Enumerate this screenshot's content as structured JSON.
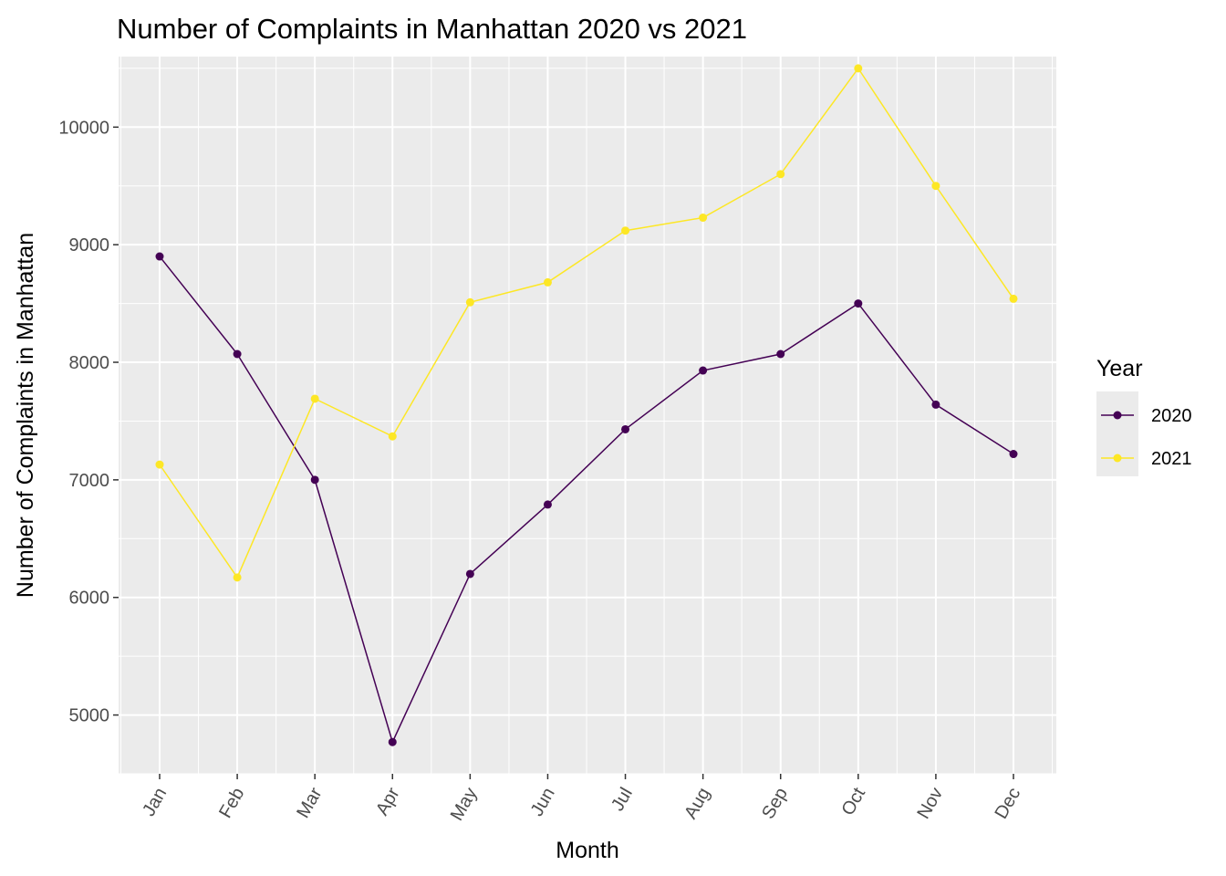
{
  "chart_data": {
    "type": "line",
    "title": "Number of Complaints in Manhattan 2020 vs 2021",
    "xlabel": "Month",
    "ylabel": "Number of Complaints in Manhattan",
    "categories": [
      "Jan",
      "Feb",
      "Mar",
      "Apr",
      "May",
      "Jun",
      "Jul",
      "Aug",
      "Sep",
      "Oct",
      "Nov",
      "Dec"
    ],
    "ylim": [
      4500,
      10600
    ],
    "yticks": [
      5000,
      6000,
      7000,
      8000,
      9000,
      10000
    ],
    "grid": true,
    "legend": {
      "title": "Year",
      "position": "right"
    },
    "series": [
      {
        "name": "2020",
        "color": "#440154",
        "values": [
          8900,
          8070,
          7000,
          4770,
          6200,
          6790,
          7430,
          7930,
          8070,
          8500,
          7640,
          7220
        ]
      },
      {
        "name": "2021",
        "color": "#fde725",
        "values": [
          7130,
          6170,
          7690,
          7370,
          8510,
          8680,
          9120,
          9230,
          9600,
          10500,
          9500,
          8540
        ]
      }
    ]
  }
}
